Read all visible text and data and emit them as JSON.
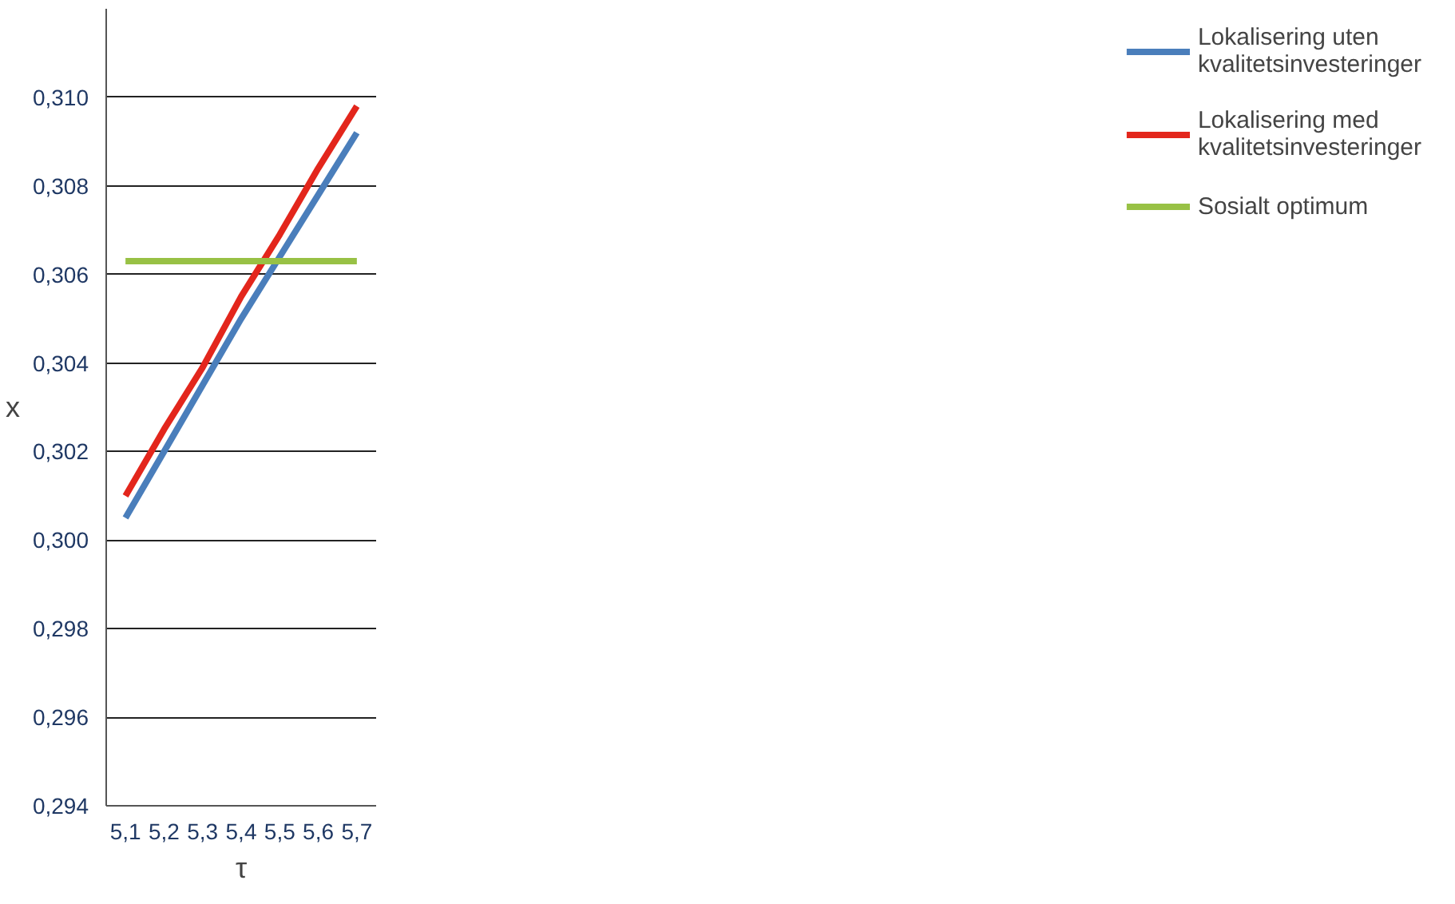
{
  "chart_data": {
    "type": "line",
    "xlabel": "τ",
    "ylabel": "x",
    "categories": [
      "5,1",
      "5,2",
      "5,3",
      "5,4",
      "5,5",
      "5,6",
      "5,7"
    ],
    "series": [
      {
        "name": "Lokalisering uten kvalitetsinvesteringer",
        "color": "#4a7ebb",
        "values": [
          0.3005,
          0.302,
          0.3035,
          0.305,
          0.3064,
          0.3078,
          0.3092
        ]
      },
      {
        "name": "Lokalisering med kvalitetsinvesteringer",
        "color": "#e3261c",
        "values": [
          0.301,
          0.3025,
          0.3039,
          0.3055,
          0.3069,
          0.3084,
          0.3098
        ]
      },
      {
        "name": "Sosialt optimum",
        "color": "#98c145",
        "values": [
          0.3063,
          0.3063,
          0.3063,
          0.3063,
          0.3063,
          0.3063,
          0.3063
        ]
      }
    ],
    "ylim": [
      0.294,
      0.312
    ],
    "yticks": [
      {
        "value": 0.294,
        "label": "0,294"
      },
      {
        "value": 0.296,
        "label": "0,296"
      },
      {
        "value": 0.298,
        "label": "0,298"
      },
      {
        "value": 0.3,
        "label": "0,300"
      },
      {
        "value": 0.302,
        "label": "0,302"
      },
      {
        "value": 0.304,
        "label": "0,304"
      },
      {
        "value": 0.306,
        "label": "0,306"
      },
      {
        "value": 0.308,
        "label": "0,308"
      },
      {
        "value": 0.31,
        "label": "0,310"
      }
    ],
    "grid": "y",
    "legend": "right",
    "marker": "none",
    "line_style": "solid"
  }
}
